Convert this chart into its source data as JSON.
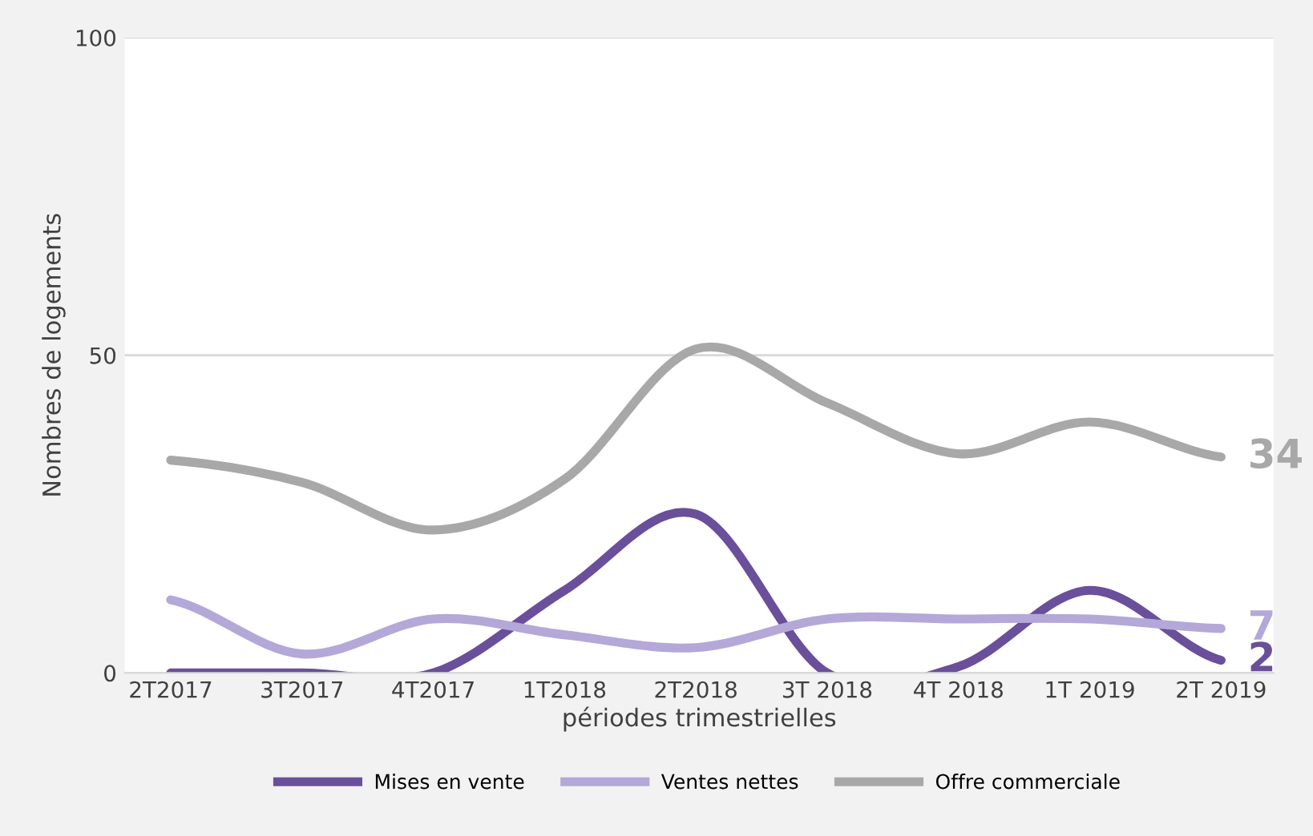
{
  "chart_data": {
    "type": "line",
    "xlabel": "périodes trimestrielles",
    "ylabel": "Nombres de logements",
    "categories": [
      "2T2017",
      "3T2017",
      "4T2017",
      "1T2018",
      "2T2018",
      "3T 2018",
      "4T 2018",
      "1T 2019",
      "2T 2019"
    ],
    "series": [
      {
        "name": "Mises en vente",
        "color": "#6a4f9b",
        "values": [
          0,
          0,
          0,
          13,
          25,
          0,
          1,
          13,
          2
        ],
        "value_labels": [
          null,
          null,
          null,
          null,
          null,
          null,
          null,
          null,
          "2"
        ]
      },
      {
        "name": "Ventes nettes",
        "color": "#b4a8d8",
        "values": [
          11.5,
          3,
          8.5,
          6,
          4,
          8.5,
          8.5,
          8.5,
          7
        ],
        "value_labels": [
          null,
          null,
          null,
          null,
          null,
          null,
          null,
          null,
          "7"
        ]
      },
      {
        "name": "Offre commerciale",
        "color": "#a8a8a8",
        "values": [
          33.5,
          30,
          22.5,
          30.5,
          51,
          42.5,
          34.5,
          39.5,
          34
        ],
        "value_labels": [
          null,
          null,
          null,
          null,
          null,
          null,
          null,
          null,
          "34"
        ]
      }
    ],
    "ylim": [
      0,
      100
    ],
    "yticks": [
      0,
      50,
      100
    ],
    "grid": "y",
    "legend": "bottom",
    "marker": "none",
    "line_style": "solid"
  }
}
